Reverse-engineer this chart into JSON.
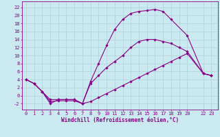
{
  "bg_color": "#cbe9f0",
  "grid_color": "#b0d0da",
  "line_color": "#880088",
  "marker": "D",
  "markersize": 2.2,
  "linewidth": 0.8,
  "xlabel": "Windchill (Refroidissement éolien,°C)",
  "xlabel_fontsize": 5.5,
  "tick_fontsize": 5.0,
  "xlim": [
    -0.5,
    23.8
  ],
  "ylim": [
    -3.5,
    23.5
  ],
  "yticks": [
    -2,
    0,
    2,
    4,
    6,
    8,
    10,
    12,
    14,
    16,
    18,
    20,
    22
  ],
  "xticks": [
    0,
    1,
    2,
    3,
    4,
    5,
    6,
    7,
    8,
    9,
    10,
    11,
    12,
    13,
    14,
    15,
    16,
    17,
    18,
    19,
    20,
    22,
    23
  ],
  "xtick_labels": [
    "0",
    "1",
    "2",
    "3",
    "4",
    "5",
    "6",
    "7",
    "8",
    "9",
    "10",
    "11",
    "12",
    "13",
    "14",
    "15",
    "16",
    "17",
    "18",
    "19",
    "20",
    "22",
    "23"
  ],
  "line1_x": [
    0,
    1,
    2,
    3,
    4,
    5,
    6,
    7,
    8,
    9,
    10,
    11,
    12,
    13,
    14,
    15,
    16,
    17,
    18,
    20,
    22,
    23
  ],
  "line1_y": [
    4,
    3,
    1,
    -2,
    -1,
    -1,
    -1,
    -2,
    3.5,
    8,
    12.5,
    16.5,
    19,
    20.5,
    21,
    21.2,
    21.5,
    21,
    19,
    15,
    5.5,
    5
  ],
  "line2_x": [
    0,
    1,
    2,
    3,
    4,
    5,
    6,
    7,
    8,
    9,
    10,
    11,
    12,
    13,
    14,
    15,
    16,
    17,
    18,
    19,
    20,
    22,
    23
  ],
  "line2_y": [
    4,
    3,
    1,
    -1,
    -1,
    -1,
    -1,
    -2,
    3,
    5,
    7,
    8.5,
    10,
    12,
    13.5,
    14,
    14,
    13.5,
    13,
    12,
    11,
    5.5,
    5
  ],
  "line3_x": [
    0,
    1,
    2,
    3,
    4,
    5,
    6,
    7,
    8,
    9,
    10,
    11,
    12,
    13,
    14,
    15,
    16,
    17,
    18,
    19,
    20,
    22,
    23
  ],
  "line3_y": [
    4,
    3,
    1,
    -1.5,
    -1.3,
    -1.3,
    -1.3,
    -2,
    -1.5,
    -0.5,
    0.5,
    1.5,
    2.5,
    3.5,
    4.5,
    5.5,
    6.5,
    7.5,
    8.5,
    9.5,
    10.5,
    5.5,
    5
  ]
}
